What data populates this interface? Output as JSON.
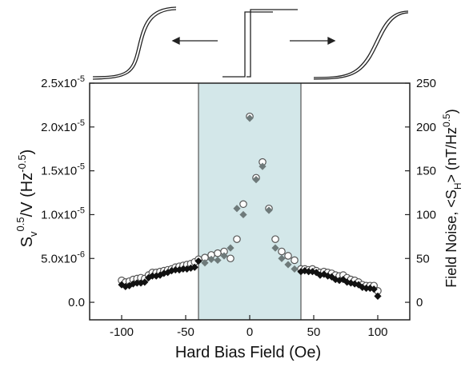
{
  "chart_data": {
    "type": "scatter",
    "xlabel": "Hard Bias Field (Oe)",
    "ylabel_left": {
      "base": "S",
      "sub": "v",
      "sup": "0.5",
      "rest": "/V (Hz",
      "rest_sup": "-0.5",
      "close": ")"
    },
    "ylabel_right": {
      "base": "Field Noise, <S",
      "sub": "H",
      "mid": "> (nT/Hz",
      "sup": "0.5",
      "close": ")"
    },
    "xlim": [
      -125,
      125
    ],
    "xticks": [
      "-100",
      "-50",
      "0",
      "50",
      "100"
    ],
    "ylim_left": [
      -2e-06,
      2.5e-05
    ],
    "yticks_left": [
      "0.0",
      "5.0x10",
      "1.0x10",
      "1.5x10",
      "2.0x10",
      "2.5x10"
    ],
    "yticks_left_exp": [
      "",
      "-6",
      "-5",
      "-5",
      "-5",
      "-5"
    ],
    "ylim_right": [
      -20,
      250
    ],
    "yticks_right": [
      "0",
      "50",
      "100",
      "150",
      "200",
      "250"
    ],
    "shaded_region": {
      "x": [
        -40,
        40
      ],
      "color": "#d3e7e9"
    },
    "colors": {
      "filled": "#111111",
      "gray": "#6e7a7a",
      "open_stroke": "#555555"
    },
    "series": [
      {
        "marker": "open-circle",
        "axis": "left",
        "x": [
          -100,
          -97,
          -94,
          -91,
          -88,
          -85,
          -82,
          -79,
          -76,
          -73,
          -70,
          -67,
          -64,
          -61,
          -58,
          -55,
          -52,
          -49,
          -46,
          -43,
          -40,
          -35,
          -30,
          -25,
          -20,
          -15,
          -10,
          -5,
          0,
          5,
          10,
          15,
          20,
          25,
          30,
          35,
          40,
          43,
          46,
          49,
          52,
          55,
          58,
          61,
          64,
          67,
          70,
          73,
          76,
          79,
          82,
          85,
          88,
          91,
          94,
          97,
          100
        ],
        "values": [
          2.5e-06,
          2.3e-06,
          2.4e-06,
          2.6e-06,
          2.7e-06,
          2.8e-06,
          2.7e-06,
          3.1e-06,
          3.4e-06,
          3.4e-06,
          3.5e-06,
          3.6e-06,
          3.7e-06,
          3.8e-06,
          4e-06,
          4.1e-06,
          4.2e-06,
          4.3e-06,
          4.4e-06,
          4.6e-06,
          4.9e-06,
          5.1e-06,
          5.4e-06,
          5.6e-06,
          5.8e-06,
          5e-06,
          7.2e-06,
          1.12e-05,
          2.12e-05,
          1.42e-05,
          1.6e-05,
          1.07e-05,
          7.2e-06,
          5.8e-06,
          5.3e-06,
          4.8e-06,
          3.8e-06,
          3.8e-06,
          3.7e-06,
          3.8e-06,
          3.6e-06,
          3.4e-06,
          3.5e-06,
          3.4e-06,
          3.3e-06,
          3.1e-06,
          3e-06,
          3.1e-06,
          2.8e-06,
          2.6e-06,
          2.5e-06,
          2.3e-06,
          2e-06,
          1.9e-06,
          1.9e-06,
          1.9e-06,
          1.3e-06
        ]
      },
      {
        "marker": "filled-diamond",
        "axis": "left",
        "x": [
          -100,
          -97,
          -94,
          -91,
          -88,
          -85,
          -82,
          -79,
          -76,
          -73,
          -70,
          -67,
          -64,
          -61,
          -58,
          -55,
          -52,
          -49,
          -46,
          -43,
          -40,
          -35,
          -30,
          -25,
          -20,
          -15,
          -10,
          -5,
          0,
          5,
          10,
          15,
          20,
          25,
          30,
          35,
          40,
          43,
          46,
          49,
          52,
          55,
          58,
          61,
          64,
          67,
          70,
          73,
          76,
          79,
          82,
          85,
          88,
          91,
          94,
          97,
          100
        ],
        "values": [
          2e-06,
          1.8e-06,
          1.9e-06,
          2.1e-06,
          2.2e-06,
          2.2e-06,
          2.3e-06,
          2.8e-06,
          3e-06,
          3e-06,
          3.1e-06,
          3.3e-06,
          3.4e-06,
          3.6e-06,
          3.7e-06,
          3.7e-06,
          3.8e-06,
          3.8e-06,
          3.9e-06,
          4e-06,
          4.7e-06,
          4.5e-06,
          4.9e-06,
          4.8e-06,
          5.3e-06,
          6.2e-06,
          1.07e-05,
          1e-05,
          2.1e-05,
          1.4e-05,
          1.55e-05,
          1.05e-05,
          6.2e-06,
          5e-06,
          4.3e-06,
          3.8e-06,
          3.5e-06,
          3.6e-06,
          3.5e-06,
          3.5e-06,
          3.4e-06,
          3.1e-06,
          3.2e-06,
          3e-06,
          2.9e-06,
          2.6e-06,
          2.5e-06,
          2.6e-06,
          2.3e-06,
          2.2e-06,
          2.1e-06,
          2e-06,
          1.7e-06,
          1.6e-06,
          1.6e-06,
          1.5e-06,
          7e-07
        ]
      }
    ]
  }
}
